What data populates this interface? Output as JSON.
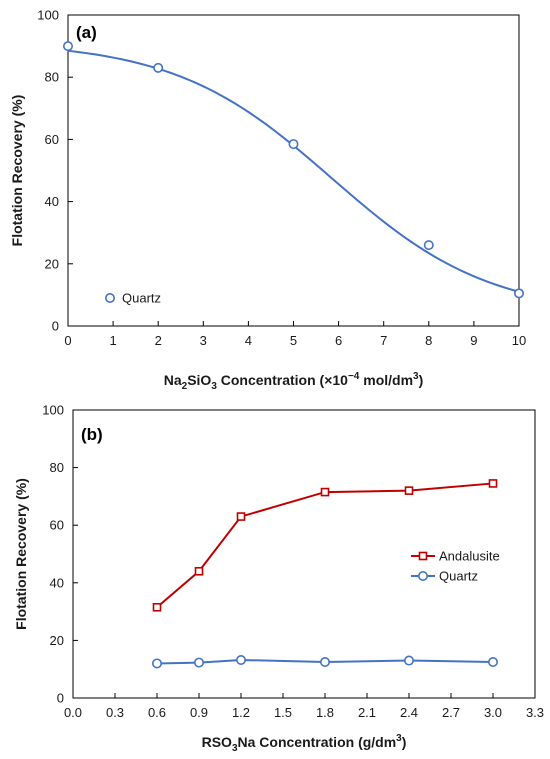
{
  "chart_data": [
    {
      "type": "scatter",
      "panel_label": "(a)",
      "xlabel_parts": [
        "Na",
        "2",
        "SiO",
        "3",
        " Concentration  (×10",
        "−4",
        " mol/dm",
        "3",
        ")"
      ],
      "ylabel": "Flotation Recovery (%)",
      "xlim": [
        0,
        10
      ],
      "ylim": [
        0,
        100
      ],
      "xticks": [
        "0",
        "1",
        "2",
        "3",
        "4",
        "5",
        "6",
        "7",
        "8",
        "9",
        "10"
      ],
      "yticks": [
        "0",
        "20",
        "40",
        "60",
        "80",
        "100"
      ],
      "grid": false,
      "legend_position": "bottom-left",
      "series": [
        {
          "name": "Quartz",
          "marker": "circle",
          "line": "smooth-fit",
          "color": "#4472C4",
          "x": [
            0,
            2,
            5,
            8,
            10
          ],
          "y": [
            90,
            83,
            58.5,
            26,
            10.5
          ]
        }
      ]
    },
    {
      "type": "line",
      "panel_label": "(b)",
      "xlabel_parts": [
        "RSO",
        "3",
        "Na Concentration (g/dm",
        "3",
        ")"
      ],
      "ylabel": "Flotation Recovery (%)",
      "xlim": [
        0,
        3.3
      ],
      "ylim": [
        0,
        100
      ],
      "xticks": [
        "0.0",
        "0.3",
        "0.6",
        "0.9",
        "1.2",
        "1.5",
        "1.8",
        "2.1",
        "2.4",
        "2.7",
        "3.0",
        "3.3"
      ],
      "yticks": [
        "0",
        "20",
        "40",
        "60",
        "80",
        "100"
      ],
      "grid": false,
      "legend_position": "right",
      "series": [
        {
          "name": "Andalusite",
          "marker": "square",
          "color": "#C00000",
          "x": [
            0.6,
            0.9,
            1.2,
            1.8,
            2.4,
            3.0
          ],
          "y": [
            31.5,
            44,
            63,
            71.5,
            72,
            74.5
          ]
        },
        {
          "name": "Quartz",
          "marker": "circle",
          "color": "#4472C4",
          "x": [
            0.6,
            0.9,
            1.2,
            1.8,
            2.4,
            3.0
          ],
          "y": [
            12,
            12.3,
            13.2,
            12.5,
            13,
            12.5
          ]
        }
      ]
    }
  ]
}
